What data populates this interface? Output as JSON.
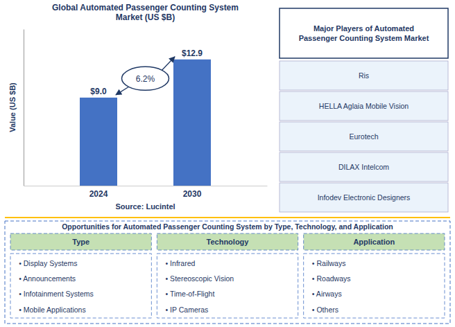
{
  "chart_data": {
    "type": "bar",
    "title": "Global Automated Passenger Counting System\nMarket (US $B)",
    "categories": [
      "2024",
      "2030"
    ],
    "values": [
      9.0,
      12.9
    ],
    "value_labels": [
      "$9.0",
      "$12.9"
    ],
    "data_labels": true,
    "color": "#4472C4",
    "y_label": "Value (US $B)",
    "ylim": [
      0,
      16
    ],
    "tick_labels": "x",
    "grid": false,
    "annotation": "6.2%",
    "source": "Source: Lucintel"
  },
  "side_panel": {
    "title": "Major Players of Automated\nPassenger Counting System Market",
    "items": [
      "Ris",
      "HELLA Aglaia Mobile Vision",
      "Eurotech",
      "DILAX Intelcom",
      "Infodev Electronic Designers"
    ]
  },
  "bottom_panel": {
    "title": "Opportunities for Automated Passenger Counting System by Type, Technology, and Application",
    "columns": [
      {
        "header": "Type",
        "items": [
          "• Display Systems",
          "• Announcements",
          "• Infotainment Systems",
          "• Mobile Applications"
        ]
      },
      {
        "header": "Technology",
        "items": [
          "• Infrared",
          "• Stereoscopic Vision",
          "• Time-of-Flight",
          "• IP Cameras"
        ]
      },
      {
        "header": "Application",
        "items": [
          "• Railways",
          "• Roadways",
          "• Airways",
          "• Others"
        ]
      }
    ]
  }
}
